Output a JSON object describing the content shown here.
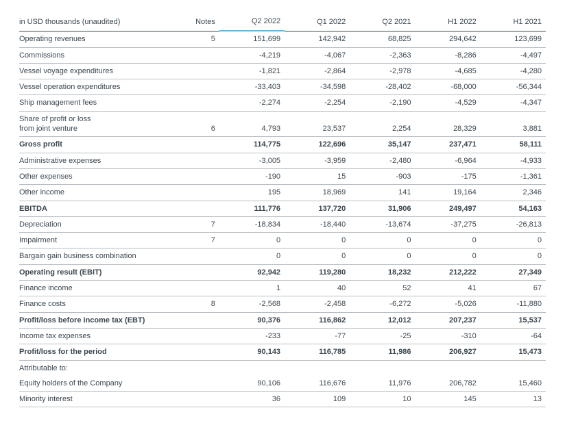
{
  "header": {
    "title": "in USD thousands (unaudited)",
    "notes_label": "Notes",
    "periods": [
      "Q2 2022",
      "Q1 2022",
      "Q2 2021",
      "H1 2022",
      "H1 2021"
    ]
  },
  "colors": {
    "text": "#3b4750",
    "header_border": "#3b4750",
    "row_border": "#b8bec3",
    "highlight_border": "#5bbce4",
    "background": "#ffffff"
  },
  "rows": [
    {
      "label": "Operating revenues",
      "note": "5",
      "vals": [
        "151,699",
        "142,942",
        "68,825",
        "294,642",
        "123,699"
      ],
      "bold": false
    },
    {
      "label": "Commissions",
      "note": "",
      "vals": [
        "-4,219",
        "-4,067",
        "-2,363",
        "-8,286",
        "-4,497"
      ],
      "bold": false
    },
    {
      "label": "Vessel voyage expenditures",
      "note": "",
      "vals": [
        "-1,821",
        "-2,864",
        "-2,978",
        "-4,685",
        "-4,280"
      ],
      "bold": false
    },
    {
      "label": "Vessel operation expenditures",
      "note": "",
      "vals": [
        "-33,403",
        "-34,598",
        "-28,402",
        "-68,000",
        "-56,344"
      ],
      "bold": false
    },
    {
      "label": "Ship management fees",
      "note": "",
      "vals": [
        "-2,274",
        "-2,254",
        "-2,190",
        "-4,529",
        "-4,347"
      ],
      "bold": false
    },
    {
      "label": "Share of profit or loss\nfrom joint venture",
      "note": "6",
      "vals": [
        "4,793",
        "23,537",
        "2,254",
        "28,329",
        "3,881"
      ],
      "bold": false,
      "multiline": true
    },
    {
      "label": "Gross profit",
      "note": "",
      "vals": [
        "114,775",
        "122,696",
        "35,147",
        "237,471",
        "58,111"
      ],
      "bold": true
    },
    {
      "label": "Administrative expenses",
      "note": "",
      "vals": [
        "-3,005",
        "-3,959",
        "-2,480",
        "-6,964",
        "-4,933"
      ],
      "bold": false
    },
    {
      "label": "Other expenses",
      "note": "",
      "vals": [
        "-190",
        "15",
        "-903",
        "-175",
        "-1,361"
      ],
      "bold": false
    },
    {
      "label": "Other income",
      "note": "",
      "vals": [
        "195",
        "18,969",
        "141",
        "19,164",
        "2,346"
      ],
      "bold": false
    },
    {
      "label": "EBITDA",
      "note": "",
      "vals": [
        "111,776",
        "137,720",
        "31,906",
        "249,497",
        "54,163"
      ],
      "bold": true
    },
    {
      "label": "Depreciation",
      "note": "7",
      "vals": [
        "-18,834",
        "-18,440",
        "-13,674",
        "-37,275",
        "-26,813"
      ],
      "bold": false
    },
    {
      "label": "Impairment",
      "note": "7",
      "vals": [
        "0",
        "0",
        "0",
        "0",
        "0"
      ],
      "bold": false
    },
    {
      "label": "Bargain gain business combination",
      "note": "",
      "vals": [
        "0",
        "0",
        "0",
        "0",
        "0"
      ],
      "bold": false
    },
    {
      "label": "Operating result (EBIT)",
      "note": "",
      "vals": [
        "92,942",
        "119,280",
        "18,232",
        "212,222",
        "27,349"
      ],
      "bold": true
    },
    {
      "label": "Finance income",
      "note": "",
      "vals": [
        "1",
        "40",
        "52",
        "41",
        "67"
      ],
      "bold": false
    },
    {
      "label": "Finance costs",
      "note": "8",
      "vals": [
        "-2,568",
        "-2,458",
        "-6,272",
        "-5,026",
        "-11,880"
      ],
      "bold": false
    },
    {
      "label": "Profit/loss before income tax (EBT)",
      "note": "",
      "vals": [
        "90,376",
        "116,862",
        "12,012",
        "207,237",
        "15,537"
      ],
      "bold": true
    },
    {
      "label": "Income tax expenses",
      "note": "",
      "vals": [
        "-233",
        "-77",
        "-25",
        "-310",
        "-64"
      ],
      "bold": false
    },
    {
      "label": "Profit/loss for the period",
      "note": "",
      "vals": [
        "90,143",
        "116,785",
        "11,986",
        "206,927",
        "15,473"
      ],
      "bold": true
    },
    {
      "label": "Attributable to:",
      "note": "",
      "vals": [
        "",
        "",
        "",
        "",
        ""
      ],
      "bold": false,
      "noline": true
    },
    {
      "label": "Equity holders of the Company",
      "note": "",
      "vals": [
        "90,106",
        "116,676",
        "11,976",
        "206,782",
        "15,460"
      ],
      "bold": false
    },
    {
      "label": "Minority interest",
      "note": "",
      "vals": [
        "36",
        "109",
        "10",
        "145",
        "13"
      ],
      "bold": false
    }
  ]
}
